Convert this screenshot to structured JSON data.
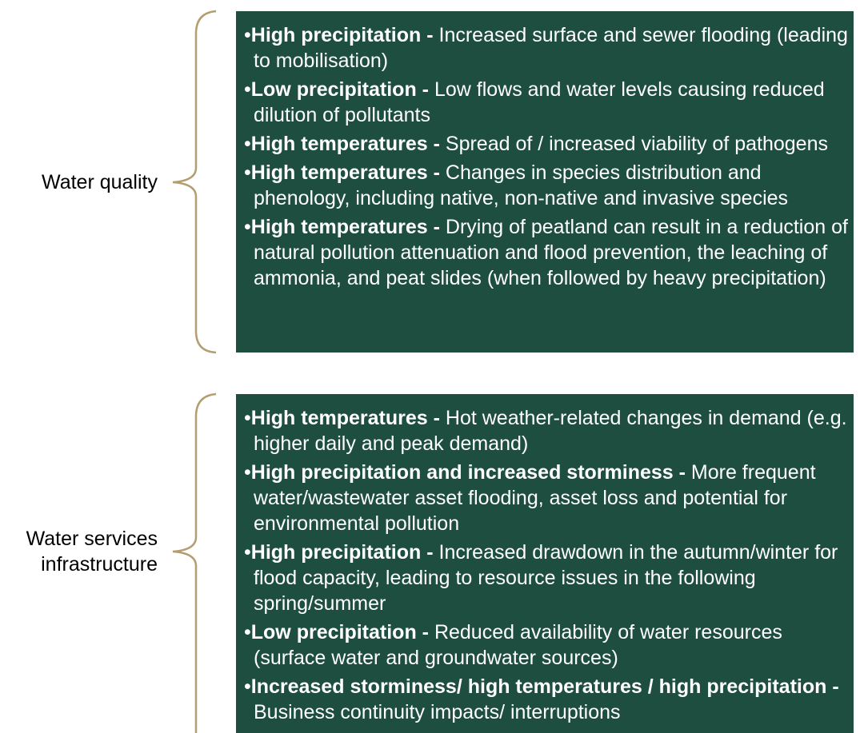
{
  "groups": [
    {
      "label": [
        "Water quality"
      ],
      "items": [
        {
          "bold": "High precipitation -",
          "text": "Increased surface and sewer flooding (leading to mobilisation)"
        },
        {
          "bold": "Low precipitation -",
          "text": "Low flows and water levels causing reduced dilution of pollutants"
        },
        {
          "bold": "High temperatures -",
          "text": "Spread of / increased viability of pathogens"
        },
        {
          "bold": "High temperatures -",
          "text": "Changes in species distribution and phenology, including native, non-native and invasive species"
        },
        {
          "bold": "High temperatures -",
          "text": "Drying of peatland can result in a reduction of natural pollution attenuation and flood prevention, the leaching of ammonia, and peat slides (when followed by heavy precipitation)"
        }
      ]
    },
    {
      "label": [
        "Water services",
        "infrastructure"
      ],
      "items": [
        {
          "bold": "High temperatures -",
          "text": "Hot weather-related changes in demand (e.g. higher daily and peak demand)"
        },
        {
          "bold": "High precipitation and increased storminess -",
          "text": "More frequent water/wastewater asset flooding, asset loss and potential for environmental pollution"
        },
        {
          "bold": "High precipitation -",
          "text": "Increased drawdown in the autumn/winter for flood capacity, leading to resource issues in the following spring/summer"
        },
        {
          "bold": "Low precipitation -",
          "text": "Reduced availability of water resources (surface water and groundwater sources)"
        },
        {
          "bold": "Increased storminess/ high temperatures / high precipitation -",
          "text": "Business continuity impacts/ interruptions"
        }
      ]
    }
  ]
}
